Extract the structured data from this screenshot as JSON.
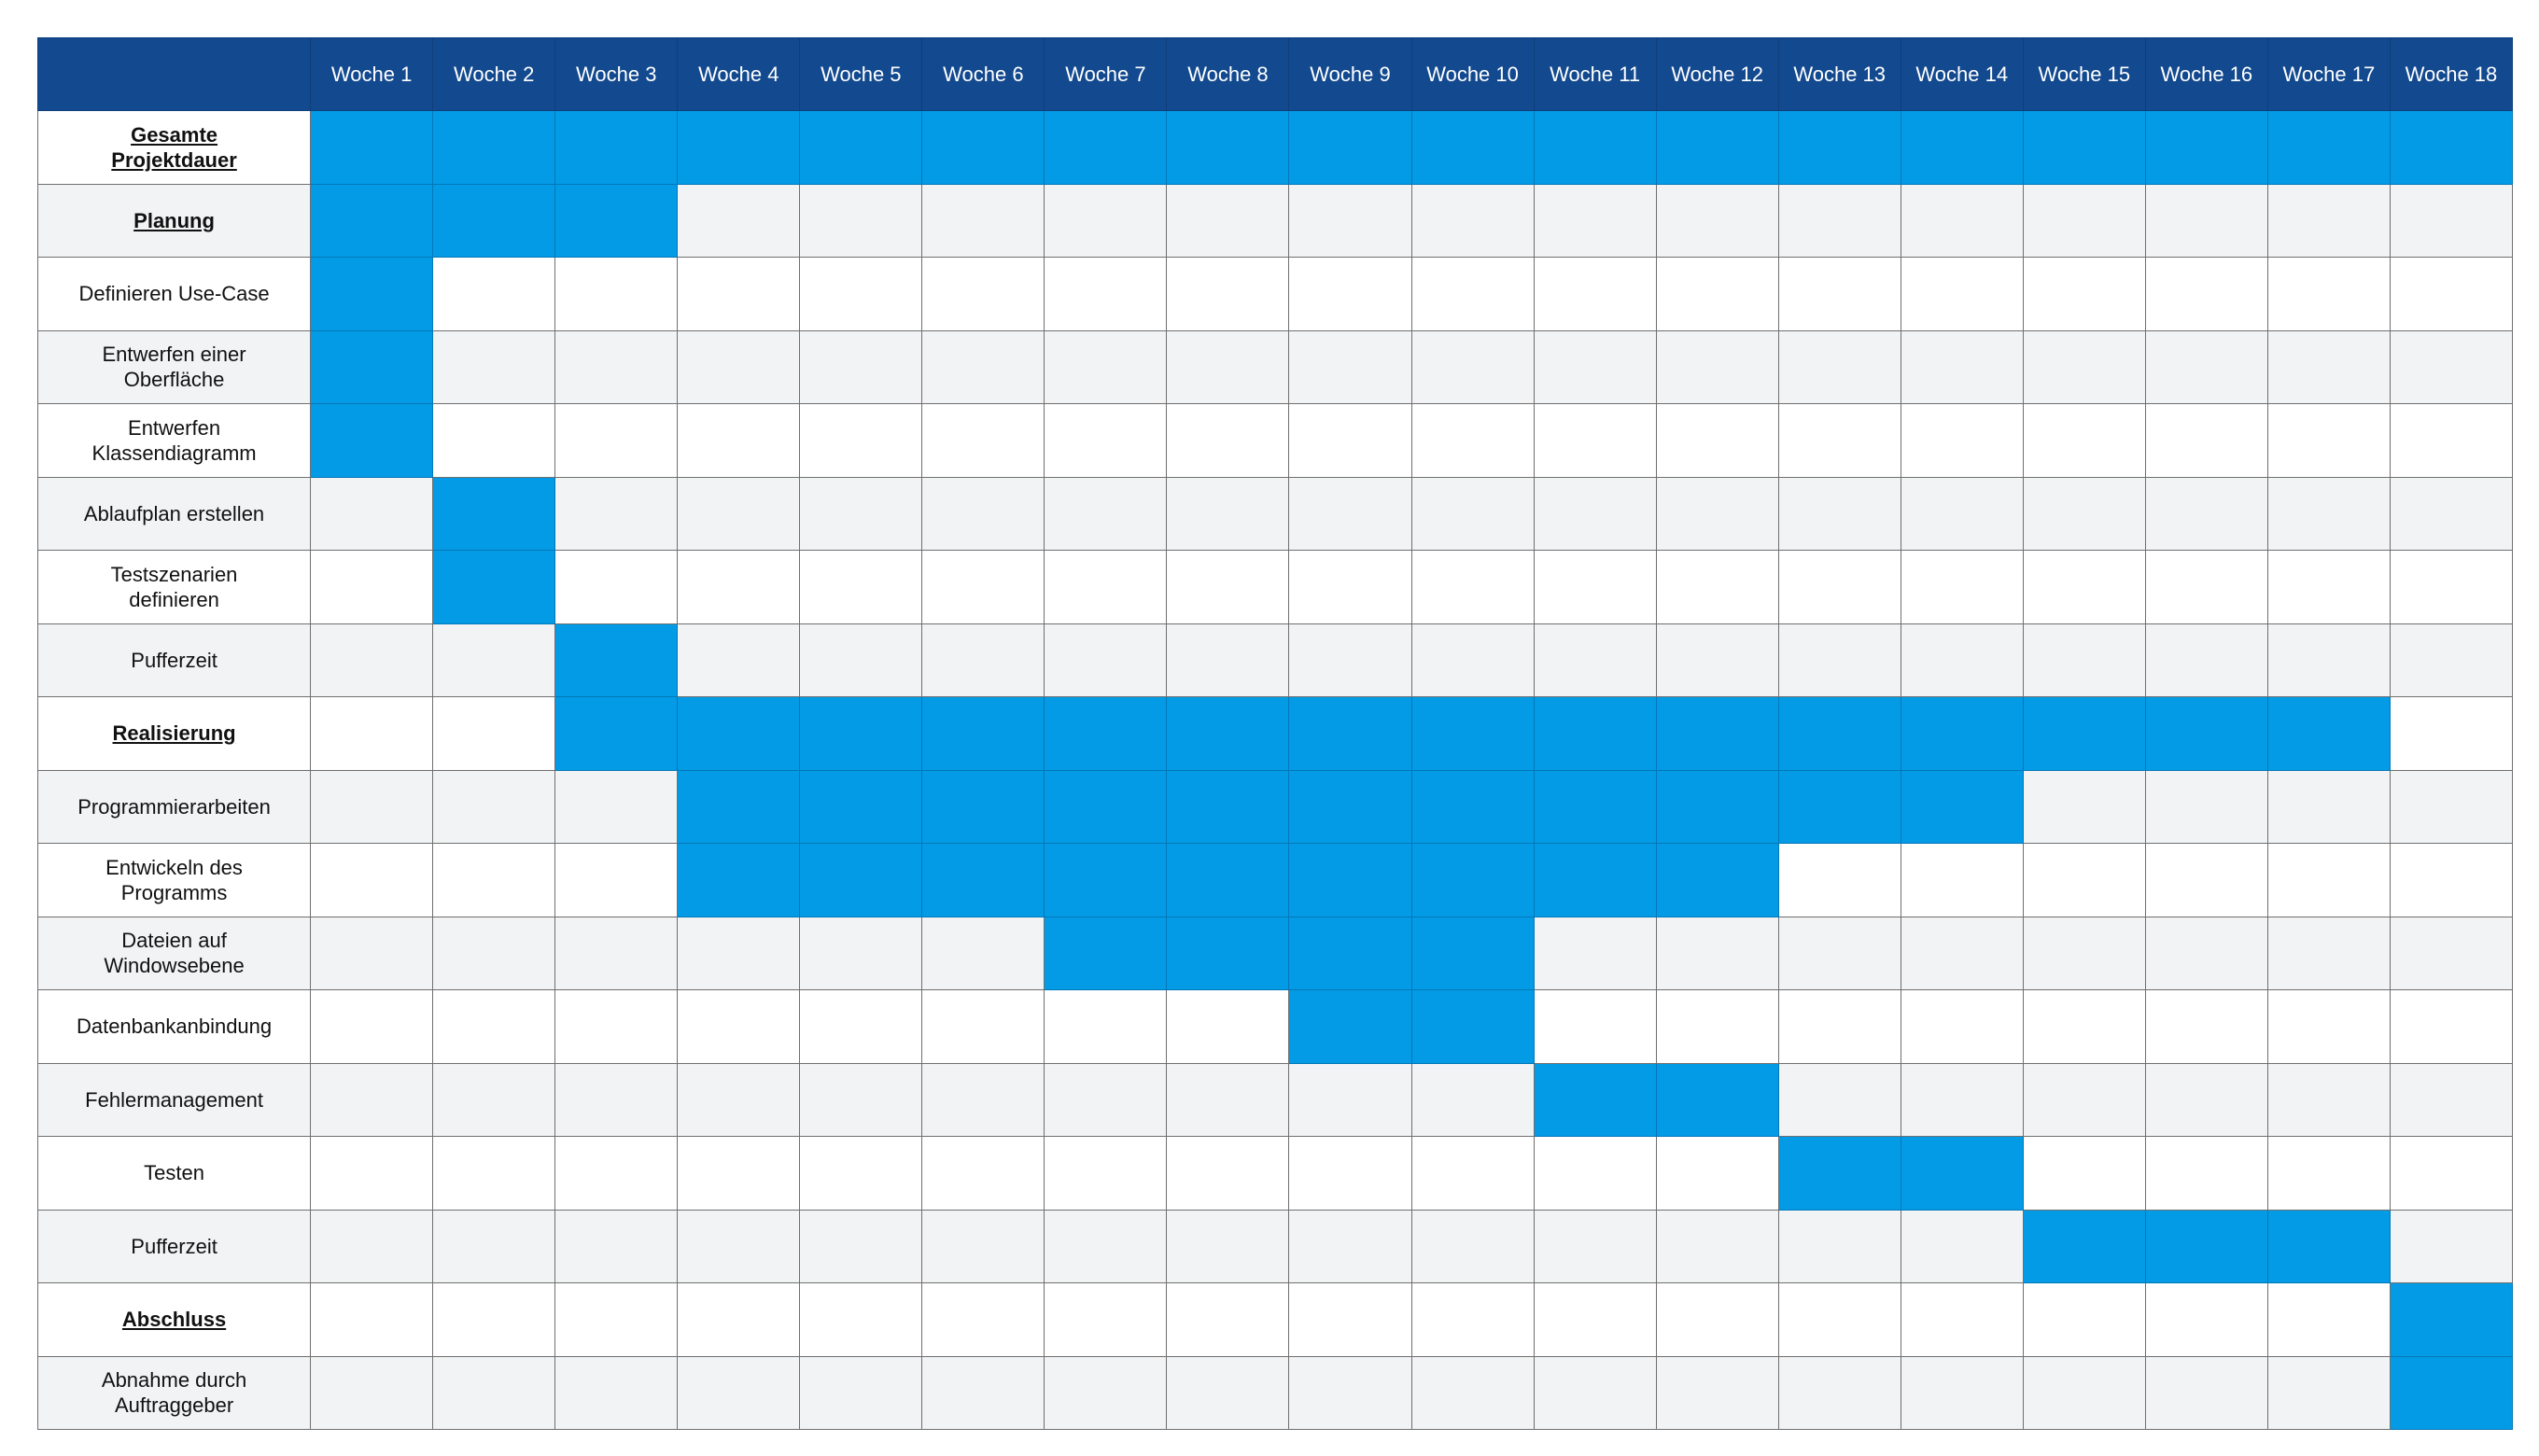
{
  "colors": {
    "header_bg": "#12498f",
    "bar": "#039be5",
    "row_alt": "#f2f3f5",
    "row": "#ffffff"
  },
  "weeks": [
    "Woche 1",
    "Woche 2",
    "Woche 3",
    "Woche 4",
    "Woche 5",
    "Woche 6",
    "Woche 7",
    "Woche 8",
    "Woche 9",
    "Woche 10",
    "Woche 11",
    "Woche 12",
    "Woche 13",
    "Woche 14",
    "Woche 15",
    "Woche 16",
    "Woche 17",
    "Woche 18"
  ],
  "tasks": [
    {
      "label": "Gesamte Projektdauer",
      "phase": true,
      "start": 1,
      "end": 18
    },
    {
      "label": "Planung",
      "phase": true,
      "start": 1,
      "end": 3
    },
    {
      "label": "Definieren Use-Case",
      "phase": false,
      "start": 1,
      "end": 1
    },
    {
      "label": "Entwerfen einer Oberfläche",
      "phase": false,
      "start": 1,
      "end": 1
    },
    {
      "label": "Entwerfen Klassendiagramm",
      "phase": false,
      "start": 1,
      "end": 1
    },
    {
      "label": "Ablaufplan erstellen",
      "phase": false,
      "start": 2,
      "end": 2
    },
    {
      "label": "Testszenarien definieren",
      "phase": false,
      "start": 2,
      "end": 2
    },
    {
      "label": "Pufferzeit",
      "phase": false,
      "start": 3,
      "end": 3
    },
    {
      "label": "Realisierung",
      "phase": true,
      "start": 3,
      "end": 17
    },
    {
      "label": "Programmierarbeiten",
      "phase": false,
      "start": 4,
      "end": 14
    },
    {
      "label": "Entwickeln des Programms",
      "phase": false,
      "start": 4,
      "end": 12
    },
    {
      "label": "Dateien auf Windowsebene",
      "phase": false,
      "start": 7,
      "end": 10
    },
    {
      "label": "Datenbankanbindung",
      "phase": false,
      "start": 9,
      "end": 10
    },
    {
      "label": "Fehlermanagement",
      "phase": false,
      "start": 11,
      "end": 12
    },
    {
      "label": "Testen",
      "phase": false,
      "start": 13,
      "end": 14
    },
    {
      "label": "Pufferzeit",
      "phase": false,
      "start": 15,
      "end": 17
    },
    {
      "label": "Abschluss",
      "phase": true,
      "start": 18,
      "end": 18
    },
    {
      "label": "Abnahme durch Auftraggeber",
      "phase": false,
      "start": 18,
      "end": 18
    }
  ]
}
